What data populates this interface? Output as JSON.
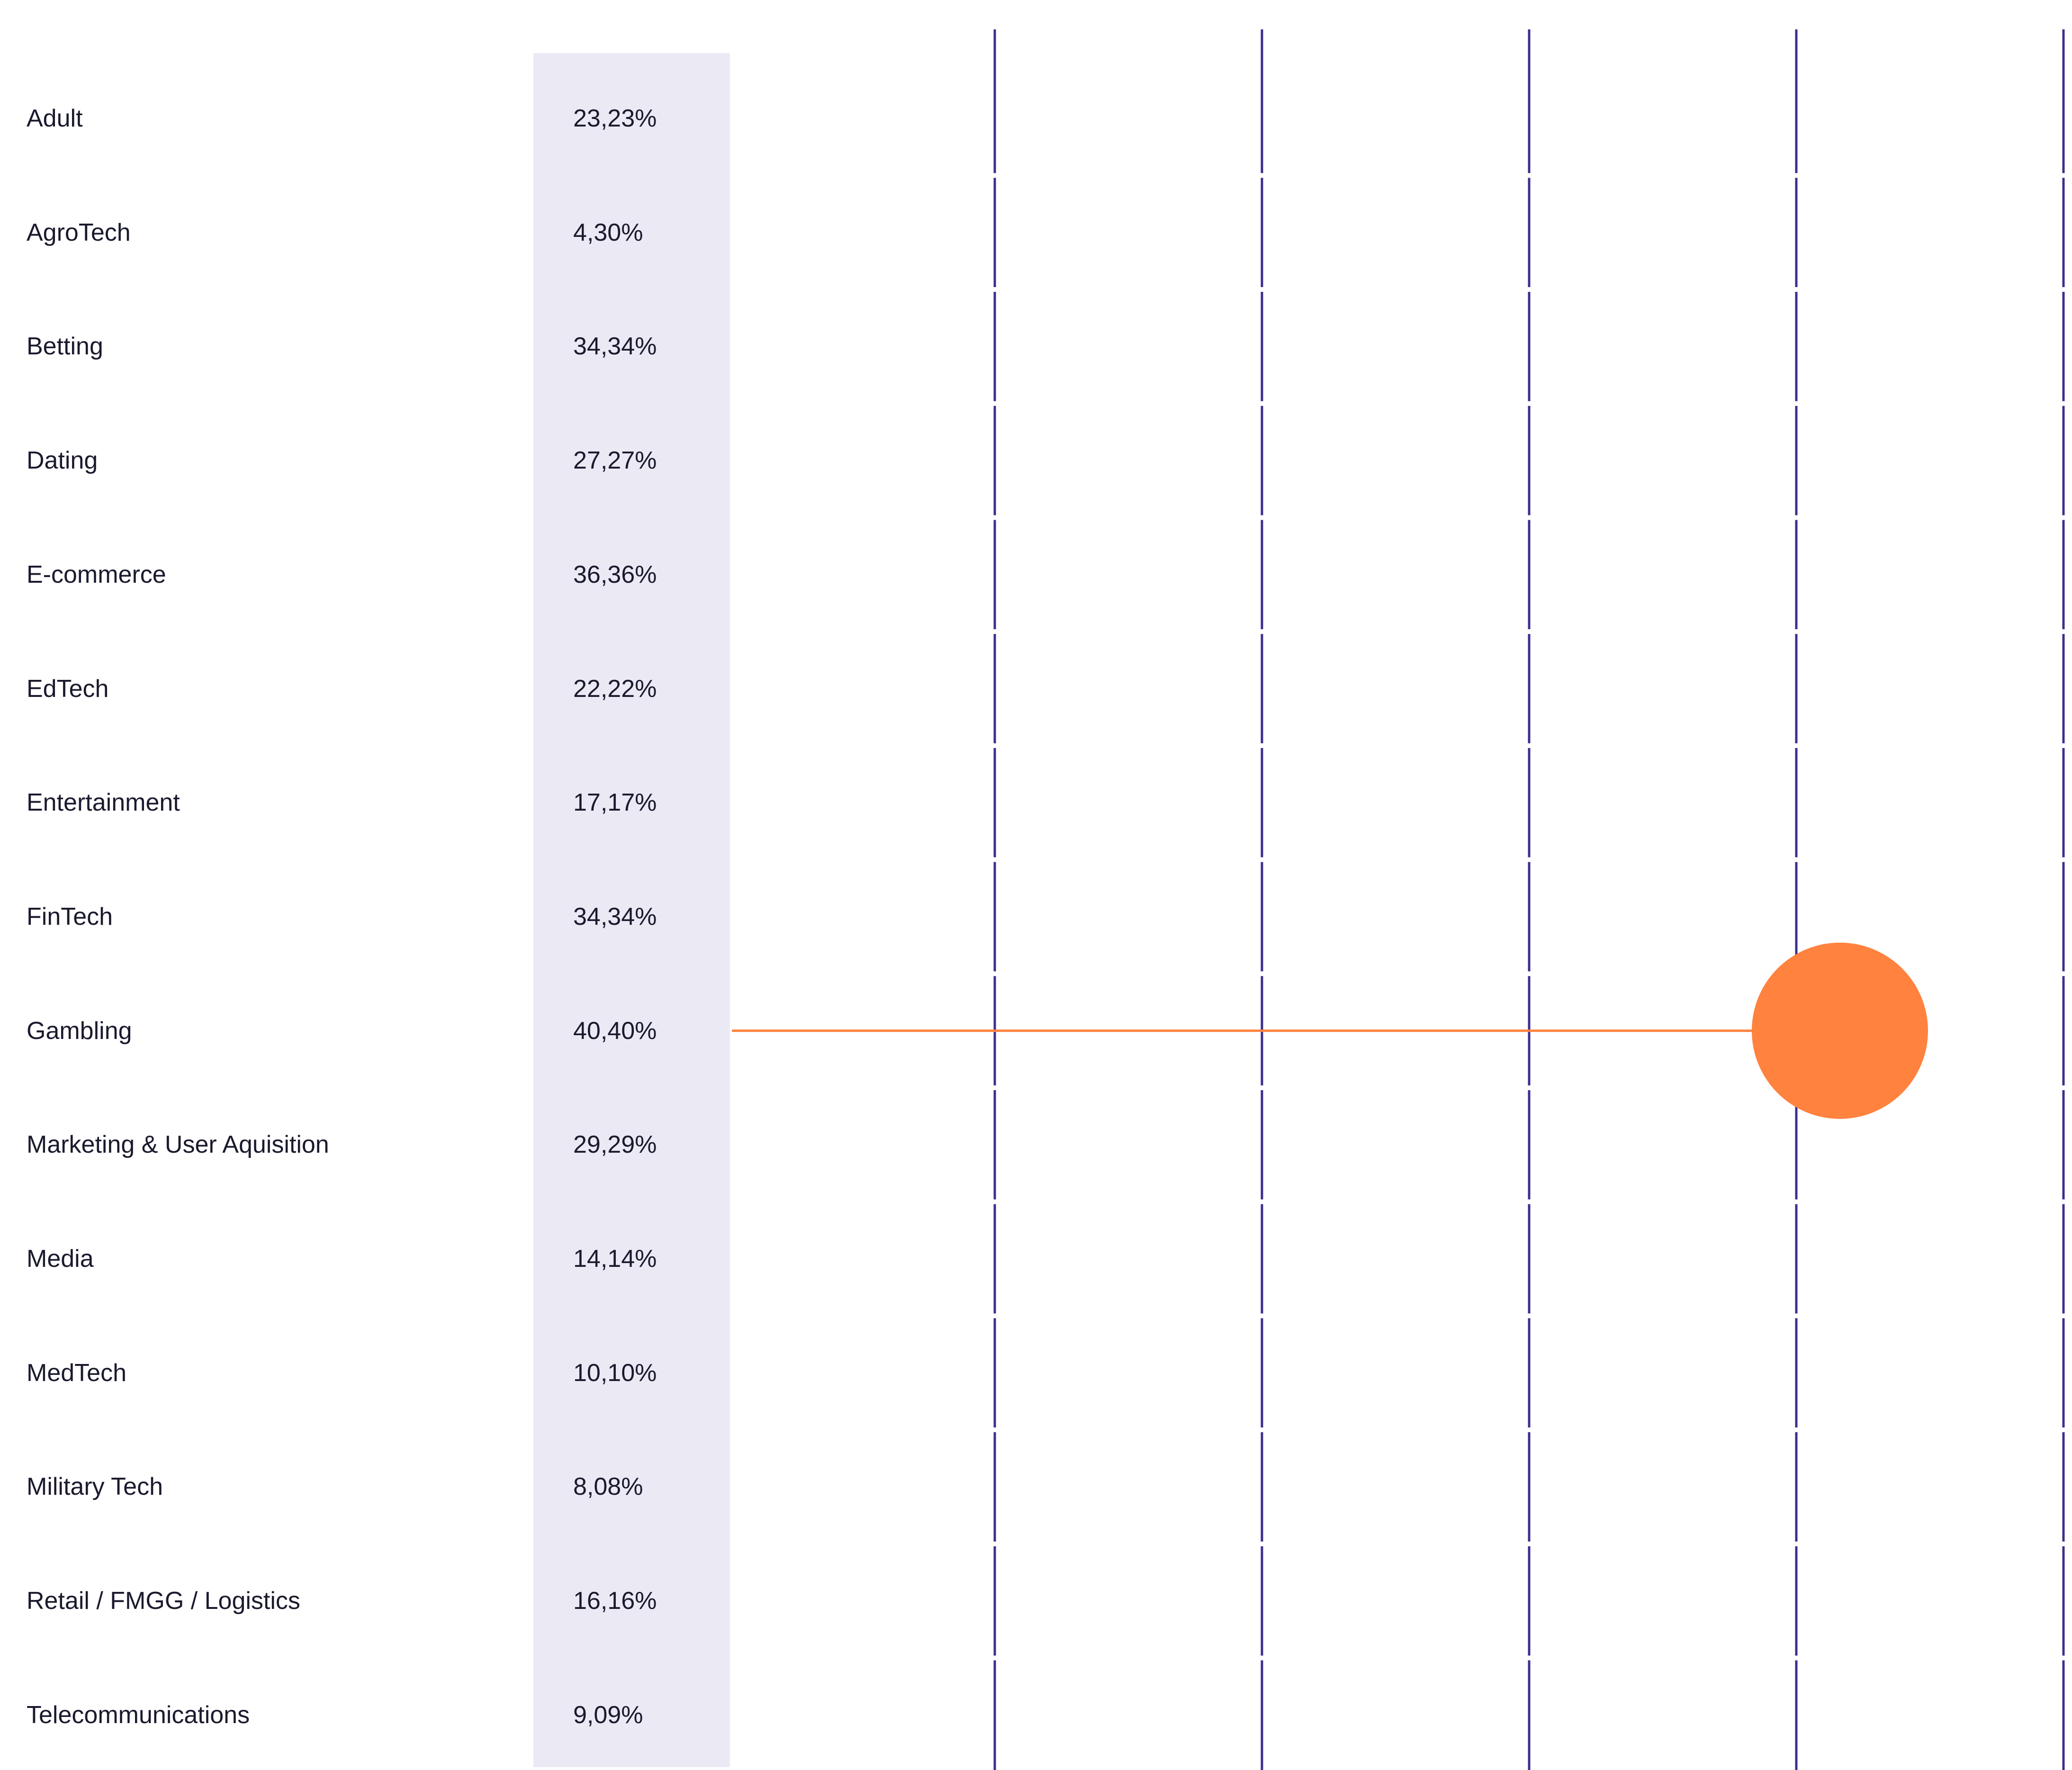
{
  "chart_data": {
    "type": "table",
    "title": "",
    "xlabel": "",
    "ylabel": "",
    "rows": [
      {
        "category": "Adult",
        "value_label": "23,23%",
        "value": 23.23
      },
      {
        "category": "AgroTech",
        "value_label": "4,30%",
        "value": 4.3
      },
      {
        "category": "Betting",
        "value_label": "34,34%",
        "value": 34.34
      },
      {
        "category": "Dating",
        "value_label": "27,27%",
        "value": 27.27
      },
      {
        "category": "E-commerce",
        "value_label": "36,36%",
        "value": 36.36
      },
      {
        "category": "EdTech",
        "value_label": "22,22%",
        "value": 22.22
      },
      {
        "category": "Entertainment",
        "value_label": "17,17%",
        "value": 17.17
      },
      {
        "category": "FinTech",
        "value_label": "34,34%",
        "value": 34.34
      },
      {
        "category": "Gambling",
        "value_label": "40,40%",
        "value": 40.4
      },
      {
        "category": "Marketing & User Aquisition",
        "value_label": "29,29%",
        "value": 29.29
      },
      {
        "category": "Media",
        "value_label": "14,14%",
        "value": 14.14
      },
      {
        "category": "MedTech",
        "value_label": "10,10%",
        "value": 10.1
      },
      {
        "category": "Military Tech",
        "value_label": "8,08%",
        "value": 8.08
      },
      {
        "category": "Retail / FMGG / Logistics",
        "value_label": "16,16%",
        "value": 16.16
      },
      {
        "category": "Telecommunications",
        "value_label": "9,09%",
        "value": 9.09
      }
    ],
    "highlight": {
      "category": "Gambling",
      "value": 40.4,
      "shape": "circle"
    },
    "grid": true,
    "legend": "none",
    "colors": {
      "text": "#1a1a2e",
      "value_band": "#ebe9f4",
      "gridline": "#3a2f8f",
      "highlight": "#ff823e"
    }
  }
}
